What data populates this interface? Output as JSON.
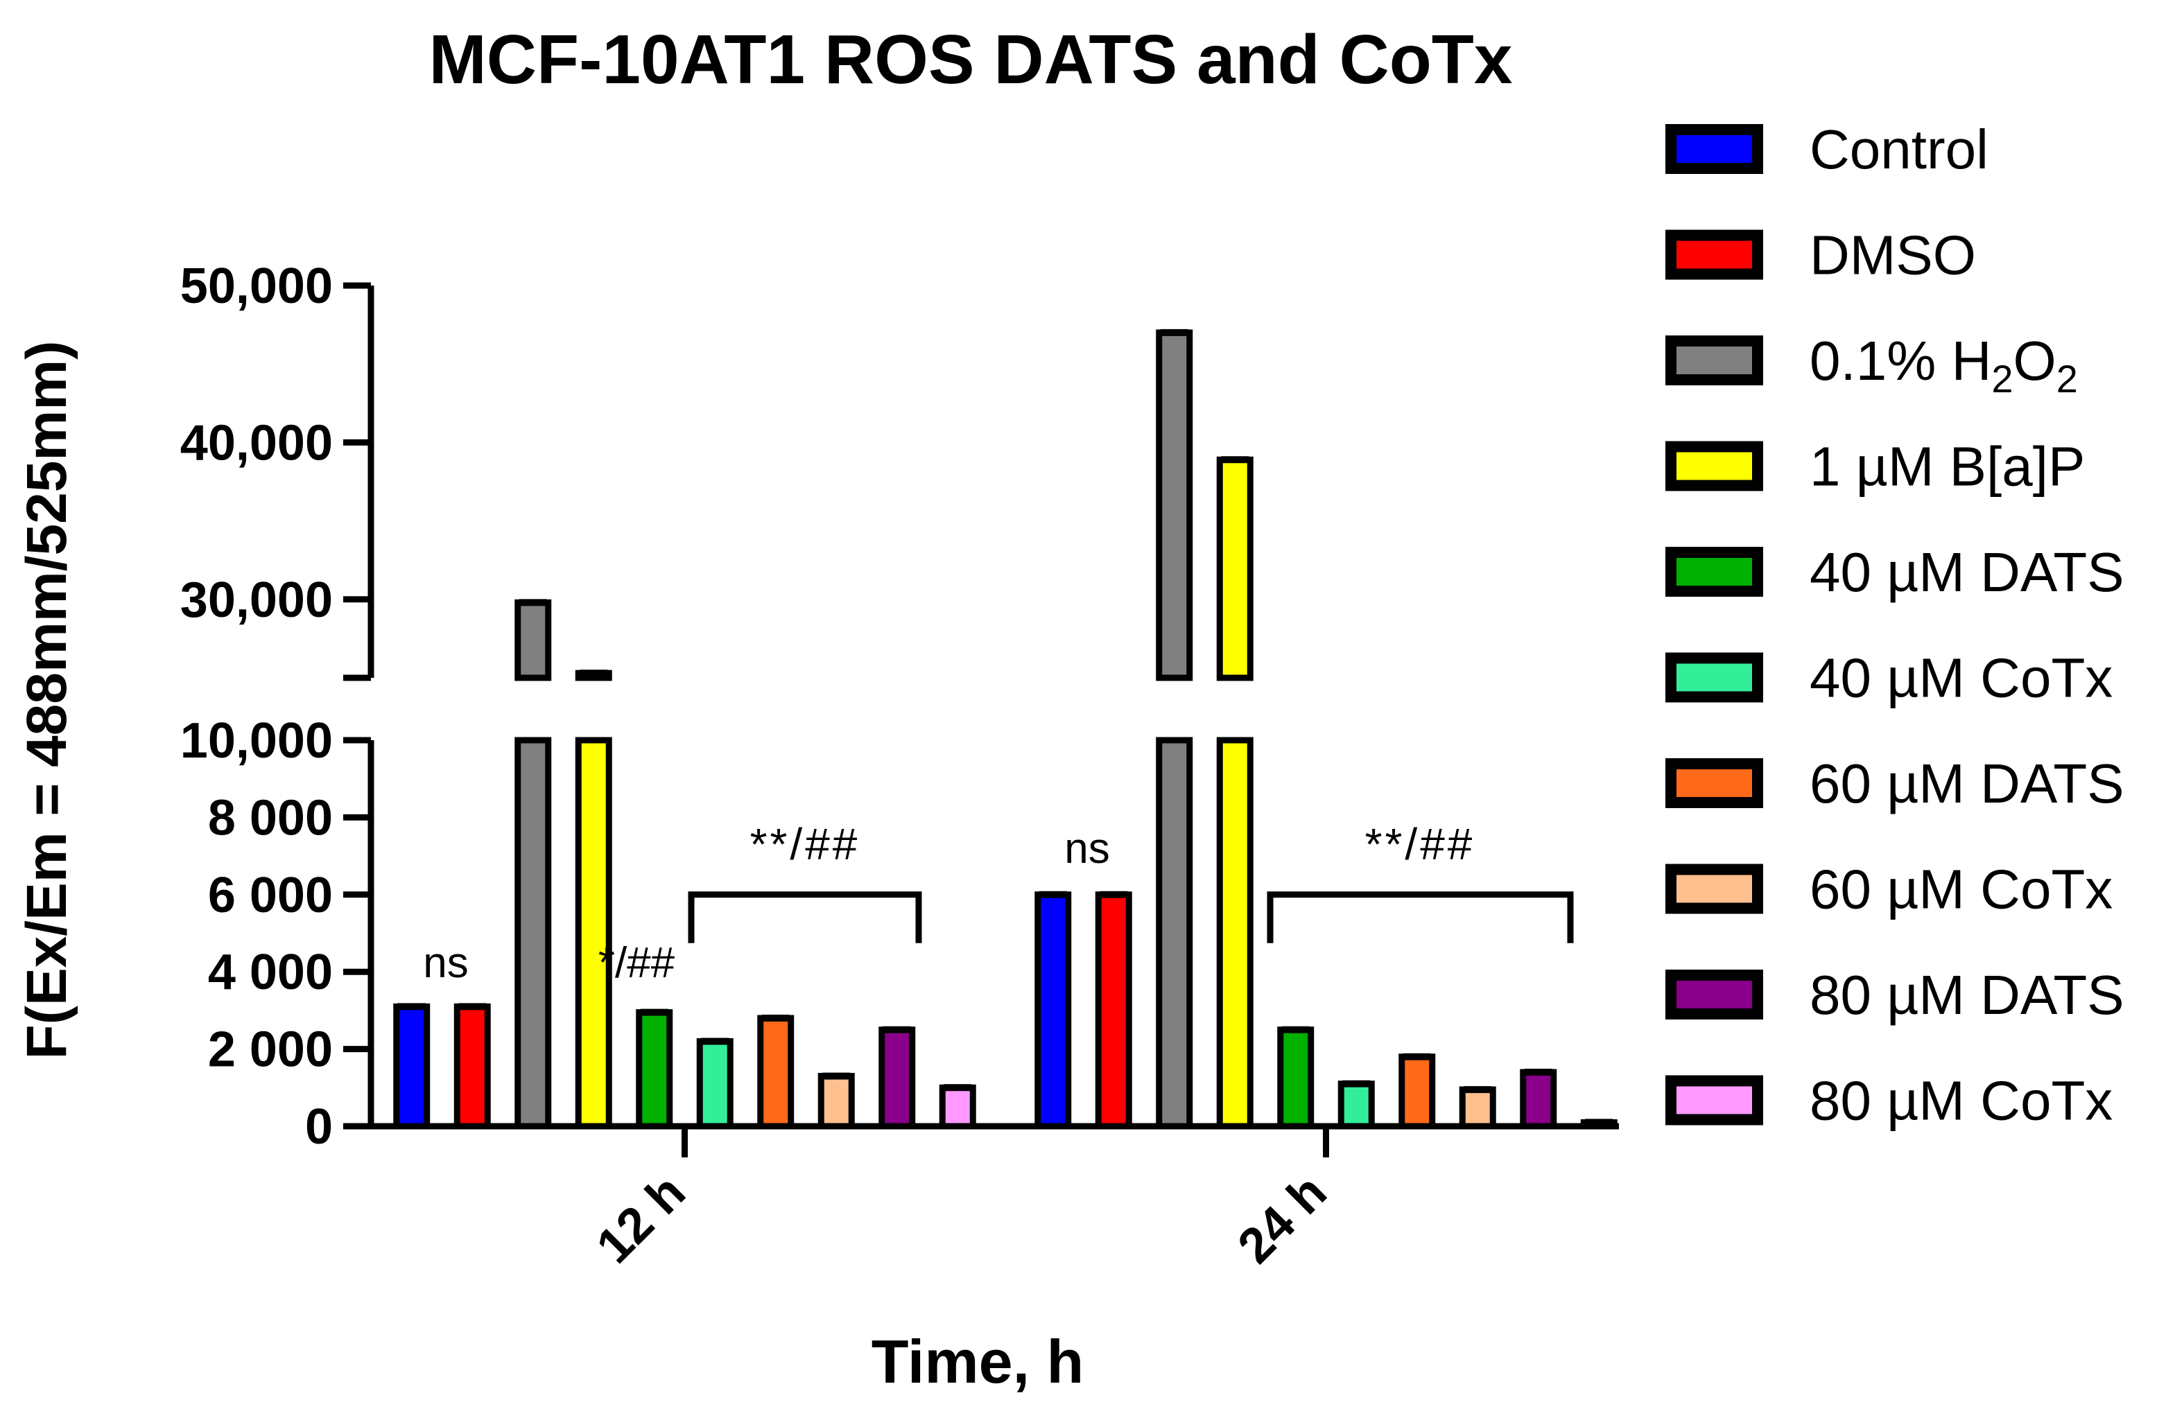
{
  "chart_data": {
    "type": "bar",
    "title": "MCF-10AT1 ROS DATS and CoTx",
    "xlabel": "Time, h",
    "ylabel": "F(Ex/Em = 488mm/525mm)",
    "categories": [
      "12 h",
      "24 h"
    ],
    "y_axis_break": true,
    "ylim_lower": [
      0,
      10000
    ],
    "ylim_upper": [
      25000,
      50000
    ],
    "ticks_lower": [
      {
        "value": 0,
        "label": "0"
      },
      {
        "value": 2000,
        "label": "2 000"
      },
      {
        "value": 4000,
        "label": "4 000"
      },
      {
        "value": 6000,
        "label": "6 000"
      },
      {
        "value": 8000,
        "label": "8 000"
      },
      {
        "value": 10000,
        "label": "10,000"
      }
    ],
    "ticks_upper": [
      {
        "value": 30000,
        "label": "30,000"
      },
      {
        "value": 40000,
        "label": "40,000"
      },
      {
        "value": 50000,
        "label": "50,000"
      }
    ],
    "series": [
      {
        "name": "Control",
        "color": "#0000ff",
        "values": [
          3100,
          6000
        ]
      },
      {
        "name": "DMSO",
        "color": "#ff0000",
        "values": [
          3100,
          6000
        ]
      },
      {
        "name": "0.1% H2O2",
        "name_parts": [
          "0.1% H",
          "2",
          "O",
          "2"
        ],
        "color": "#808080",
        "values": [
          29800,
          47000
        ]
      },
      {
        "name": "1 µM B[a]P",
        "color": "#ffff00",
        "values": [
          25300,
          38900
        ]
      },
      {
        "name": "40 µM DATS",
        "color": "#00b000",
        "values": [
          2950,
          2500
        ]
      },
      {
        "name": "40 µM CoTx",
        "color": "#33ee99",
        "values": [
          2200,
          1100
        ]
      },
      {
        "name": "60 µM DATS",
        "color": "#ff6a1a",
        "values": [
          2800,
          1800
        ]
      },
      {
        "name": "60 µM CoTx",
        "color": "#ffc090",
        "values": [
          1300,
          950
        ]
      },
      {
        "name": "80 µM DATS",
        "color": "#8a008a",
        "values": [
          2500,
          1400
        ]
      },
      {
        "name": "80 µM CoTx",
        "color": "#ff99ff",
        "values": [
          1000,
          100
        ]
      }
    ],
    "annotations": {
      "ns_12h": "ns",
      "star_12h": "*/##",
      "bracket_12h": "**/##",
      "ns_24h": "ns",
      "bracket_24h": "**/##"
    },
    "legend_position": "right",
    "grid": false
  }
}
